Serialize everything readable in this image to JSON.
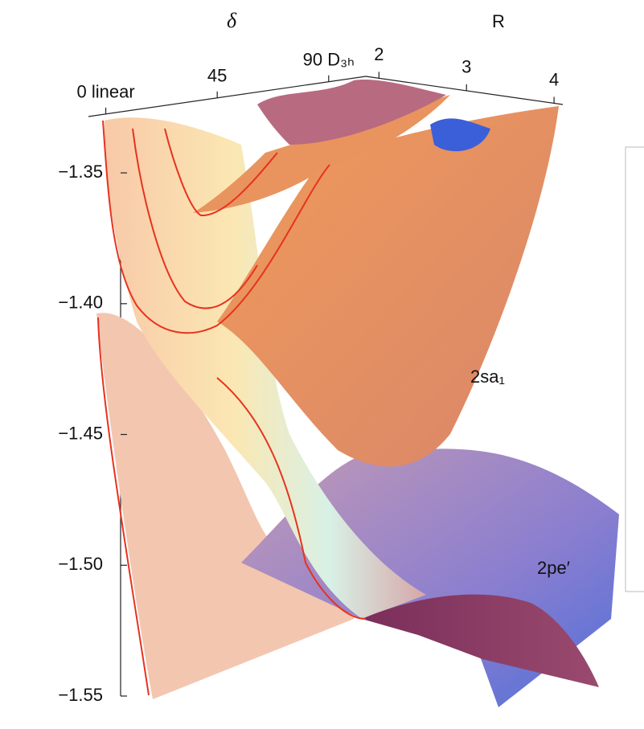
{
  "chart_data": {
    "type": "surface3d",
    "delta_label": "δ",
    "r_label": "R",
    "delta_lim": [
      -7,
      105
    ],
    "delta_ticks": [
      {
        "value": 0,
        "label": "0 linear"
      },
      45,
      {
        "value": 90,
        "label": "90 D₃ₕ"
      }
    ],
    "r_lim": [
      1.85,
      4.1
    ],
    "r_ticks": [
      2,
      3,
      4
    ],
    "zlim": [
      -1.55,
      -1.33
    ],
    "zticks": [
      {
        "value": -1.35,
        "label": "−1.35"
      },
      {
        "value": -1.4,
        "label": "−1.40"
      },
      {
        "value": -1.45,
        "label": "−1.45"
      },
      {
        "value": -1.5,
        "label": "−1.50"
      },
      {
        "value": -1.55,
        "label": "−1.55"
      }
    ],
    "annotations": [
      "2sa₁",
      "2pe′"
    ]
  }
}
